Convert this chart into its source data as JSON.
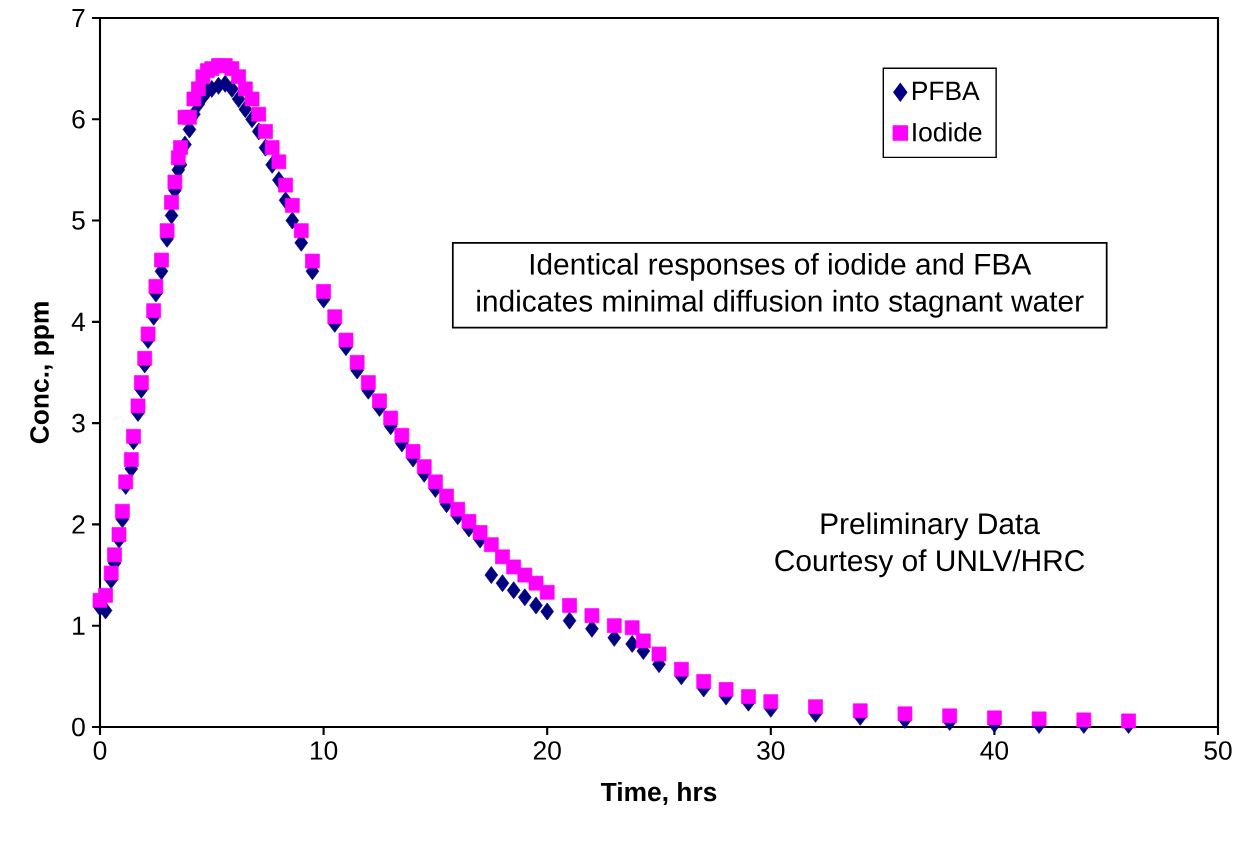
{
  "chart_data": {
    "type": "scatter",
    "xlabel": "Time, hrs",
    "ylabel": "Conc., ppm",
    "xlim": [
      0,
      50
    ],
    "xticks": [
      0,
      10,
      20,
      30,
      40,
      50
    ],
    "ylim": [
      0,
      7
    ],
    "yticks": [
      0,
      1,
      2,
      3,
      4,
      5,
      6,
      7
    ],
    "legend": "top right",
    "grid": false,
    "annotations": [
      "Identical responses of iodide and FBA",
      "indicates minimal diffusion into stagnant water",
      "Preliminary Data",
      "Courtesy of UNLV/HRC"
    ],
    "series": [
      {
        "name": "PFBA",
        "color": "#000080",
        "marker": "diamond",
        "x": [
          0,
          0.25,
          0.5,
          0.65,
          0.85,
          1.0,
          1.15,
          1.4,
          1.5,
          1.7,
          1.85,
          2.0,
          2.15,
          2.4,
          2.5,
          2.75,
          3.0,
          3.2,
          3.35,
          3.5,
          3.6,
          3.8,
          4.0,
          4.2,
          4.4,
          4.6,
          4.8,
          5.0,
          5.3,
          5.6,
          5.9,
          6.2,
          6.5,
          6.8,
          7.1,
          7.4,
          7.7,
          8.0,
          8.3,
          8.6,
          9,
          9.5,
          10,
          10.5,
          11,
          11.5,
          12,
          12.5,
          13,
          13.5,
          14,
          14.5,
          15,
          15.5,
          16,
          16.5,
          17,
          17.5,
          18,
          18.5,
          19,
          19.5,
          20,
          21,
          22,
          23,
          23.8,
          24.3,
          25,
          26,
          27,
          28,
          29,
          30,
          32,
          34,
          36,
          38,
          40,
          42,
          44,
          46
        ],
        "values": [
          1.18,
          1.15,
          1.45,
          1.62,
          1.85,
          2.05,
          2.38,
          2.55,
          2.82,
          3.1,
          3.33,
          3.58,
          3.82,
          4.05,
          4.28,
          4.5,
          4.82,
          5.05,
          5.3,
          5.5,
          5.55,
          5.75,
          5.9,
          6.05,
          6.15,
          6.22,
          6.28,
          6.3,
          6.33,
          6.35,
          6.3,
          6.2,
          6.1,
          6.0,
          5.88,
          5.72,
          5.55,
          5.4,
          5.2,
          5.0,
          4.78,
          4.5,
          4.22,
          3.98,
          3.75,
          3.52,
          3.32,
          3.15,
          2.97,
          2.8,
          2.65,
          2.5,
          2.35,
          2.2,
          2.08,
          1.96,
          1.85,
          1.5,
          1.42,
          1.35,
          1.28,
          1.2,
          1.14,
          1.05,
          0.97,
          0.88,
          0.82,
          0.75,
          0.62,
          0.5,
          0.38,
          0.3,
          0.24,
          0.18,
          0.13,
          0.1,
          0.07,
          0.05,
          0.03,
          0.02,
          0.02,
          0.02
        ]
      },
      {
        "name": "Iodide",
        "color": "#ff00ff",
        "marker": "square",
        "x": [
          0,
          0.25,
          0.5,
          0.65,
          0.85,
          1.0,
          1.15,
          1.4,
          1.5,
          1.7,
          1.85,
          2.0,
          2.15,
          2.4,
          2.5,
          2.75,
          3.0,
          3.2,
          3.35,
          3.5,
          3.6,
          3.8,
          4.0,
          4.2,
          4.4,
          4.6,
          4.8,
          5.0,
          5.3,
          5.6,
          5.9,
          6.2,
          6.5,
          6.8,
          7.1,
          7.4,
          7.7,
          8.0,
          8.3,
          8.6,
          9,
          9.5,
          10,
          10.5,
          11,
          11.5,
          12,
          12.5,
          13,
          13.5,
          14,
          14.5,
          15,
          15.5,
          16,
          16.5,
          17,
          17.5,
          18,
          18.5,
          19,
          19.5,
          20,
          21,
          22,
          23,
          23.8,
          24.3,
          25,
          26,
          27,
          28,
          29,
          30,
          32,
          34,
          36,
          38,
          40,
          42,
          44,
          46
        ],
        "values": [
          1.25,
          1.3,
          1.52,
          1.7,
          1.9,
          2.13,
          2.42,
          2.64,
          2.87,
          3.17,
          3.4,
          3.64,
          3.88,
          4.11,
          4.35,
          4.61,
          4.9,
          5.18,
          5.38,
          5.62,
          5.72,
          6.02,
          6.02,
          6.2,
          6.3,
          6.42,
          6.48,
          6.5,
          6.53,
          6.53,
          6.5,
          6.42,
          6.3,
          6.2,
          6.05,
          5.88,
          5.72,
          5.58,
          5.35,
          5.15,
          4.9,
          4.6,
          4.3,
          4.05,
          3.82,
          3.6,
          3.4,
          3.22,
          3.05,
          2.88,
          2.72,
          2.57,
          2.42,
          2.28,
          2.15,
          2.03,
          1.92,
          1.8,
          1.68,
          1.58,
          1.5,
          1.42,
          1.33,
          1.2,
          1.1,
          1.0,
          0.98,
          0.85,
          0.72,
          0.57,
          0.45,
          0.37,
          0.3,
          0.25,
          0.2,
          0.16,
          0.13,
          0.11,
          0.09,
          0.08,
          0.07,
          0.06
        ]
      }
    ]
  }
}
